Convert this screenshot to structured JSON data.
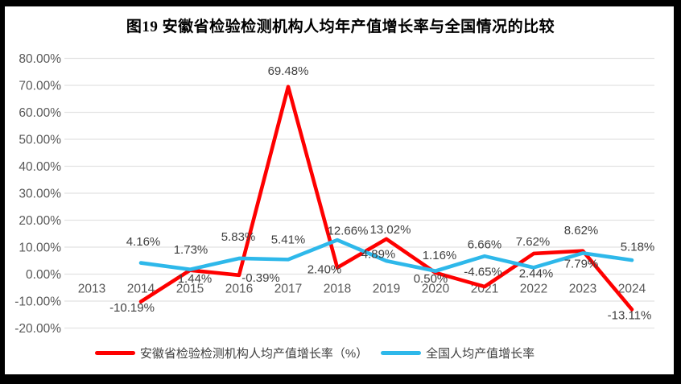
{
  "title": "图19 安徽省检验检测机构人均年产值增长率与全国情况的比较",
  "chart_data": {
    "type": "line",
    "title": "图19 安徽省检验检测机构人均年产值增长率与全国情况的比较",
    "categories": [
      "2013",
      "2014",
      "2015",
      "2016",
      "2017",
      "2018",
      "2019",
      "2020",
      "2021",
      "2022",
      "2023",
      "2024"
    ],
    "series": [
      {
        "name": "安徽省检验检测机构人均产值增长率（%）",
        "color": "#fe0000",
        "values": [
          null,
          -10.19,
          1.44,
          -0.39,
          69.48,
          2.4,
          13.02,
          0.5,
          -4.65,
          7.62,
          8.62,
          -13.11
        ]
      },
      {
        "name": "全国人均产值增长率",
        "color": "#2eb8ea",
        "values": [
          null,
          4.16,
          1.73,
          5.83,
          5.41,
          12.66,
          4.89,
          1.16,
          6.66,
          2.44,
          7.79,
          5.18
        ]
      }
    ],
    "ylabel": "",
    "xlabel": "",
    "y_axis": {
      "min": -20,
      "max": 80,
      "step": 10,
      "tick_format": "0.00%"
    },
    "y_tick_labels": [
      "80.00%",
      "70.00%",
      "60.00%",
      "50.00%",
      "40.00%",
      "30.00%",
      "20.00%",
      "10.00%",
      "0.00%",
      "-10.00%",
      "-20.00%"
    ],
    "grid": true,
    "legend_position": "bottom",
    "data_labels": true,
    "colors": {
      "gridline": "#e2e2e2",
      "axis_text": "#595959",
      "data_label_text": "#404040",
      "frame_border": "#000000",
      "background": "#ffffff"
    }
  }
}
